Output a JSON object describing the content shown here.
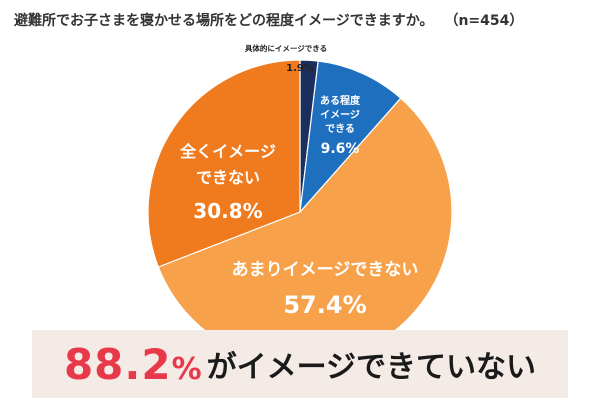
{
  "header": {
    "title": "避難所でお子さまを寝かせる場所をどの程度イメージできますか。",
    "sample": "（n=454）"
  },
  "chart_data": {
    "type": "pie",
    "unit": "%",
    "slices": [
      {
        "label": "具体的にイメージできる",
        "label_lines": [
          "具体的にイメージできる"
        ],
        "value": 1.9,
        "value_label": "1.9%",
        "color": "#1b2f5e"
      },
      {
        "label": "ある程度イメージできる",
        "label_lines": [
          "ある程度",
          "イメージ",
          "できる"
        ],
        "value": 9.6,
        "value_label": "9.6%",
        "color": "#1f6fbf"
      },
      {
        "label": "あまりイメージできない",
        "label_lines": [
          "あまりイメージできない"
        ],
        "value": 57.4,
        "value_label": "57.4%",
        "color": "#f7a24a"
      },
      {
        "label": "全くイメージできない",
        "label_lines": [
          "全くイメージ",
          "できない"
        ],
        "value": 30.8,
        "value_label": "30.8%",
        "color": "#f07a1e"
      }
    ]
  },
  "banner": {
    "number": "88.2",
    "percent_sign": "%",
    "text": "がイメージできていない"
  }
}
